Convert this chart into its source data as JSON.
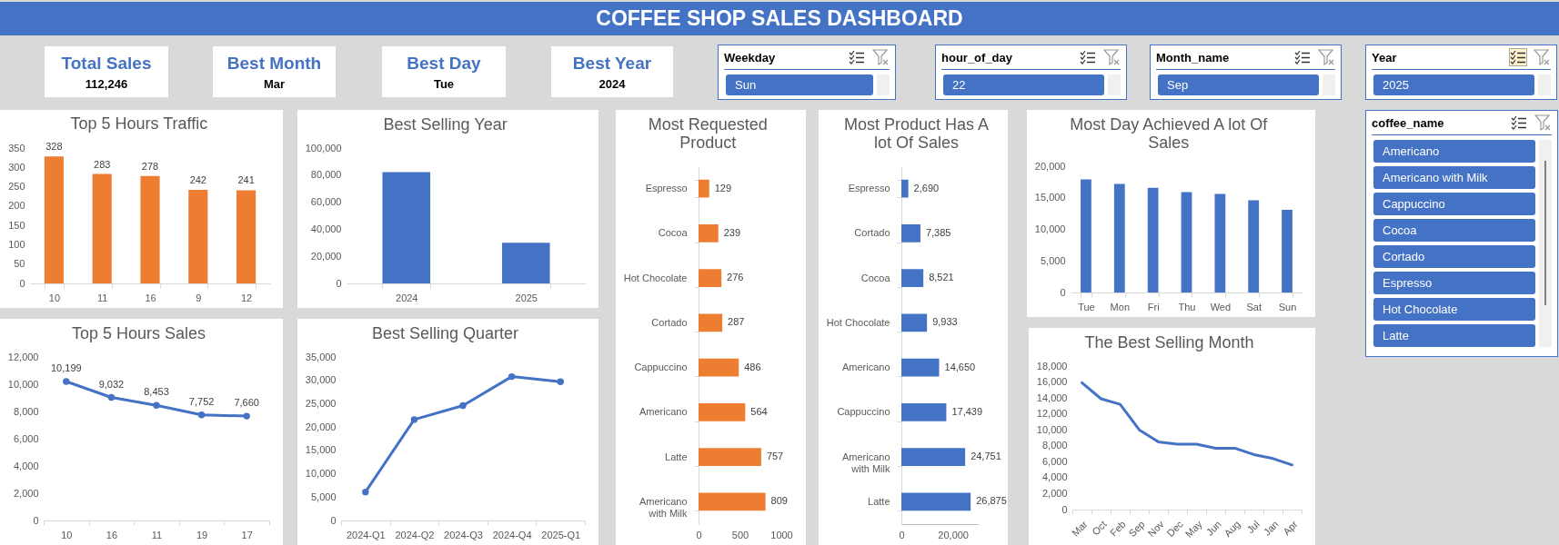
{
  "chart_data": [
    {
      "type": "other",
      "title": "COFFEE SHOP SALES DASHBOARD"
    },
    {
      "type": "other",
      "title": "Total Sales",
      "annotations": [
        "112,246"
      ]
    },
    {
      "type": "other",
      "title": "Best Month",
      "annotations": [
        "Mar"
      ]
    },
    {
      "type": "other",
      "title": "Best Day",
      "annotations": [
        "Tue"
      ]
    },
    {
      "type": "other",
      "title": "Best Year",
      "annotations": [
        "2024"
      ]
    },
    {
      "type": "other",
      "title": "Weekday",
      "annotations": [
        "Sun"
      ]
    },
    {
      "type": "other",
      "title": "hour_of_day",
      "annotations": [
        "22"
      ]
    },
    {
      "type": "other",
      "title": "Month_name",
      "annotations": [
        "Sep"
      ]
    },
    {
      "type": "other",
      "title": "Year",
      "annotations": [
        "2025"
      ]
    },
    {
      "type": "bar",
      "title": "Top 5 Hours Traffic",
      "categories": [
        "10",
        "11",
        "16",
        "9",
        "12"
      ],
      "values": [
        328,
        283,
        278,
        242,
        241
      ],
      "color": "#ed7d31",
      "ylim": [
        0,
        350
      ],
      "yticks": [
        0,
        50,
        100,
        150,
        200,
        250,
        300,
        350
      ],
      "data_labels": true
    },
    {
      "type": "bar",
      "title": "Best Selling Year",
      "categories": [
        "2024",
        "2025"
      ],
      "values": [
        82200,
        30000
      ],
      "color": "#4472c4",
      "ylim": [
        0,
        100000
      ],
      "yticks": [
        0,
        {
          "value": 20000,
          "label": "20,000"
        },
        {
          "value": 40000,
          "label": "40,000"
        },
        {
          "value": 60000,
          "label": "60,000"
        },
        {
          "value": 80000,
          "label": "80,000"
        },
        {
          "value": 100000,
          "label": "100,000"
        }
      ]
    },
    {
      "type": "bar",
      "orientation": "horizontal",
      "title": "Most Requested Product",
      "categories": [
        "Espresso",
        "Cocoa",
        "Hot Chocolate",
        "Cortado",
        "Cappuccino",
        "Americano",
        "Latte",
        "Americano with Milk"
      ],
      "values": [
        129,
        239,
        276,
        287,
        486,
        564,
        757,
        809
      ],
      "color": "#ed7d31",
      "xlim": [
        0,
        1000
      ],
      "xticks": [
        0,
        500,
        1000
      ],
      "data_labels": true
    },
    {
      "type": "bar",
      "orientation": "horizontal",
      "title": "Most Product Has A lot Of Sales",
      "categories": [
        "Espresso",
        "Cortado",
        "Cocoa",
        "Hot Chocolate",
        "Americano",
        "Cappuccino",
        "Americano with Milk",
        "Latte"
      ],
      "values": [
        2690,
        7385,
        8521,
        9933,
        14650,
        17439,
        24751,
        26875
      ],
      "value_labels": [
        "2,690",
        "7,385",
        "8,521",
        "9,933",
        "14,650",
        "17,439",
        "24,751",
        "26,875"
      ],
      "color": "#4472c4",
      "xlim": [
        0,
        30000
      ],
      "xticks": [
        0,
        {
          "value": 20000,
          "label": "20,000"
        }
      ]
    },
    {
      "type": "bar",
      "title": "Most Day Achieved A lot Of Sales",
      "categories": [
        "Tue",
        "Mon",
        "Fri",
        "Thu",
        "Wed",
        "Sat",
        "Sun"
      ],
      "values": [
        17900,
        17200,
        16600,
        15900,
        15600,
        14600,
        13100
      ],
      "color": "#4472c4",
      "ylim": [
        0,
        20000
      ],
      "yticks": [
        0,
        {
          "value": 5000,
          "label": "5,000"
        },
        {
          "value": 10000,
          "label": "10,000"
        },
        {
          "value": 15000,
          "label": "15,000"
        },
        {
          "value": 20000,
          "label": "20,000"
        }
      ]
    },
    {
      "type": "other",
      "title": "coffee_name",
      "annotations": [
        "Americano",
        "Americano with Milk",
        "Cappuccino",
        "Cocoa",
        "Cortado",
        "Espresso",
        "Hot Chocolate",
        "Latte"
      ]
    },
    {
      "type": "line",
      "title": "Top 5 Hours Sales",
      "categories": [
        "10",
        "16",
        "11",
        "19",
        "17"
      ],
      "values": [
        10199,
        9032,
        8453,
        7752,
        7660
      ],
      "value_labels": [
        "10,199",
        "9,032",
        "8,453",
        "7,752",
        "7,660"
      ],
      "color": "#4472c4",
      "marker": "circle",
      "ylim": [
        0,
        12000
      ],
      "yticks": [
        0,
        {
          "value": 2000,
          "label": "2,000"
        },
        {
          "value": 4000,
          "label": "4,000"
        },
        {
          "value": 6000,
          "label": "6,000"
        },
        {
          "value": 8000,
          "label": "8,000"
        },
        {
          "value": 10000,
          "label": "10,000"
        },
        {
          "value": 12000,
          "label": "12,000"
        }
      ]
    },
    {
      "type": "line",
      "title": "Best Selling Quarter",
      "categories": [
        "2024-Q1",
        "2024-Q2",
        "2024-Q3",
        "2024-Q4",
        "2025-Q1"
      ],
      "values": [
        6100,
        21600,
        24600,
        30800,
        29700
      ],
      "color": "#4472c4",
      "marker": "circle",
      "ylim": [
        0,
        35000
      ],
      "yticks": [
        0,
        {
          "value": 5000,
          "label": "5,000"
        },
        {
          "value": 10000,
          "label": "10,000"
        },
        {
          "value": 15000,
          "label": "15,000"
        },
        {
          "value": 20000,
          "label": "20,000"
        },
        {
          "value": 25000,
          "label": "25,000"
        },
        {
          "value": 30000,
          "label": "30,000"
        },
        {
          "value": 35000,
          "label": "35,000"
        }
      ]
    },
    {
      "type": "line",
      "title": "The Best Selling Month",
      "categories": [
        "Mar",
        "Oct",
        "Feb",
        "Sep",
        "Nov",
        "Dec",
        "May",
        "Jun",
        "Aug",
        "Jul",
        "Jan",
        "Apr"
      ],
      "values": [
        15900,
        13900,
        13200,
        10000,
        8500,
        8200,
        8200,
        7700,
        7700,
        6900,
        6400,
        5600
      ],
      "color": "#4472c4",
      "ylim": [
        0,
        18000
      ],
      "yticks": [
        0,
        {
          "value": 2000,
          "label": "2,000"
        },
        {
          "value": 4000,
          "label": "4,000"
        },
        {
          "value": 6000,
          "label": "6,000"
        },
        {
          "value": 8000,
          "label": "8,000"
        },
        {
          "value": 10000,
          "label": "10,000"
        },
        {
          "value": 12000,
          "label": "12,000"
        },
        {
          "value": 14000,
          "label": "14,000"
        },
        {
          "value": 16000,
          "label": "16,000"
        },
        {
          "value": 18000,
          "label": "18,000"
        }
      ]
    }
  ]
}
